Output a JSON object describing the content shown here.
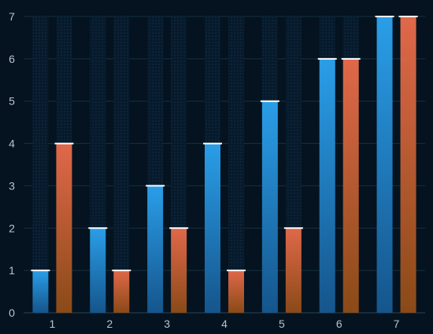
{
  "chart_data": {
    "type": "bar",
    "categories": [
      "1",
      "2",
      "3",
      "4",
      "5",
      "6",
      "7"
    ],
    "series": [
      {
        "values": [
          1,
          2,
          3,
          4,
          5,
          6,
          7
        ],
        "color": "#2a9ee8",
        "color_bottom": "#15558c"
      },
      {
        "values": [
          4,
          1,
          2,
          1,
          2,
          6,
          7
        ],
        "color": "#e0684a",
        "color_bottom": "#8a4a18"
      }
    ],
    "y_ticks": [
      "0",
      "1",
      "2",
      "3",
      "4",
      "5",
      "6",
      "7"
    ],
    "ylim": [
      0,
      7
    ],
    "grid": true,
    "title": "",
    "xlabel": "",
    "ylabel": ""
  },
  "colors": {
    "background": "#04131f",
    "gridline": "#163040",
    "axis_text": "#b8c4cc",
    "bar_cap": "#ffffff",
    "bar_track": "#0b2238"
  }
}
